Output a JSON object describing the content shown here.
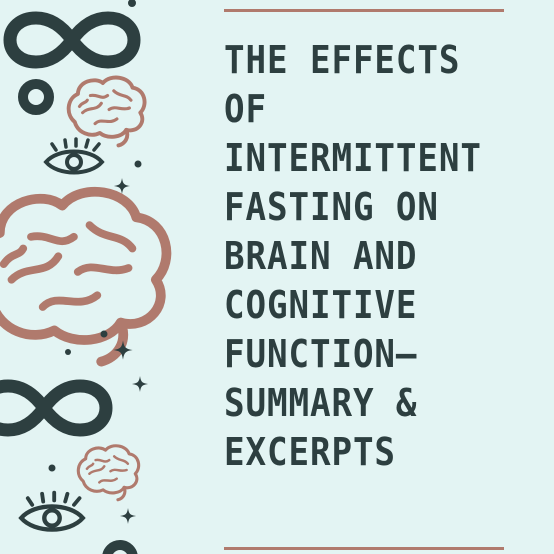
{
  "title_lines": [
    "THE EFFECTS",
    "OF",
    "INTERMITTENT",
    "FASTING ON",
    "BRAIN AND",
    "COGNITIVE",
    "FUNCTION—",
    "SUMMARY &",
    "EXCERPTS"
  ],
  "colors": {
    "background": "#e3f4f3",
    "title_text": "#2d3f40",
    "accent_rule": "#b07a6d",
    "brain_outline": "#b07a6d",
    "dark_icon": "#2d3f40"
  },
  "icons": [
    "infinity-icon",
    "ring-icon",
    "brain-icon",
    "eye-icon",
    "sparkle-icon",
    "dot-icon"
  ]
}
